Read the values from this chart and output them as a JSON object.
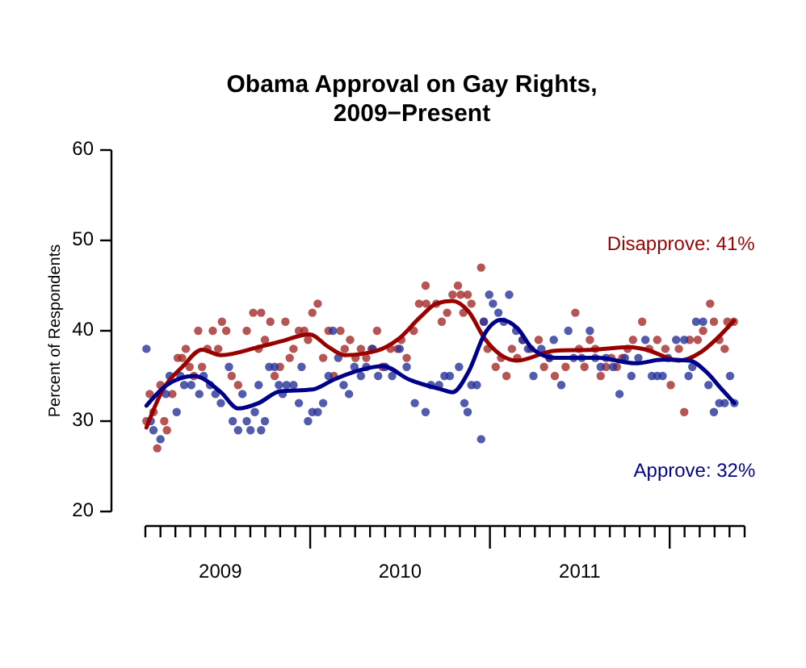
{
  "chart_data": {
    "type": "scatter",
    "title": "Obama Approval on Gay Rights,\n2009−Present",
    "ylabel": "Percent of Respondents",
    "grid": false,
    "xlim": [
      2009.083,
      2012.417
    ],
    "ylim": [
      20,
      60
    ],
    "yticks": [
      20,
      30,
      40,
      50,
      60
    ],
    "xticks": [
      {
        "value": 2009.083,
        "label": null
      },
      {
        "value": 2009.167,
        "label": null
      },
      {
        "value": 2009.25,
        "label": null
      },
      {
        "value": 2009.333,
        "label": null
      },
      {
        "value": 2009.417,
        "label": null
      },
      {
        "value": 2009.5,
        "label": "2009"
      },
      {
        "value": 2009.583,
        "label": null
      },
      {
        "value": 2009.667,
        "label": null
      },
      {
        "value": 2009.75,
        "label": null
      },
      {
        "value": 2009.833,
        "label": null
      },
      {
        "value": 2009.917,
        "label": null
      },
      {
        "value": 2010,
        "label": null
      },
      {
        "value": 2010.083,
        "label": null
      },
      {
        "value": 2010.167,
        "label": null
      },
      {
        "value": 2010.25,
        "label": null
      },
      {
        "value": 2010.333,
        "label": null
      },
      {
        "value": 2010.417,
        "label": null
      },
      {
        "value": 2010.5,
        "label": "2010"
      },
      {
        "value": 2010.583,
        "label": null
      },
      {
        "value": 2010.667,
        "label": null
      },
      {
        "value": 2010.75,
        "label": null
      },
      {
        "value": 2010.833,
        "label": null
      },
      {
        "value": 2010.917,
        "label": null
      },
      {
        "value": 2011,
        "label": null
      },
      {
        "value": 2011.083,
        "label": null
      },
      {
        "value": 2011.167,
        "label": null
      },
      {
        "value": 2011.25,
        "label": null
      },
      {
        "value": 2011.333,
        "label": null
      },
      {
        "value": 2011.417,
        "label": null
      },
      {
        "value": 2011.5,
        "label": "2011"
      },
      {
        "value": 2011.583,
        "label": null
      },
      {
        "value": 2011.667,
        "label": null
      },
      {
        "value": 2011.75,
        "label": null
      },
      {
        "value": 2011.833,
        "label": null
      },
      {
        "value": 2011.917,
        "label": null
      },
      {
        "value": 2012,
        "label": null
      },
      {
        "value": 2012.083,
        "label": null
      },
      {
        "value": 2012.167,
        "label": null
      },
      {
        "value": 2012.25,
        "label": null
      },
      {
        "value": 2012.333,
        "label": null
      },
      {
        "value": 2012.417,
        "label": null
      }
    ],
    "series": [
      {
        "marker": "circle",
        "color": "#a52a2a",
        "x": [
          2009.089,
          2009.107,
          2009.128,
          2009.149,
          2009.167,
          2009.188,
          2009.203,
          2009.233,
          2009.263,
          2009.287,
          2009.308,
          2009.329,
          2009.353,
          2009.377,
          2009.398,
          2009.428,
          2009.458,
          2009.488,
          2009.509,
          2009.533,
          2009.563,
          2009.599,
          2009.647,
          2009.683,
          2009.713,
          2009.727,
          2009.748,
          2009.778,
          2009.802,
          2009.832,
          2009.862,
          2009.886,
          2009.907,
          2009.937,
          2009.967,
          2009.988,
          2010.012,
          2010.042,
          2010.072,
          2010.102,
          2010.132,
          2010.168,
          2010.192,
          2010.222,
          2010.252,
          2010.282,
          2010.312,
          2010.342,
          2010.372,
          2010.402,
          2010.447,
          2010.486,
          2010.507,
          2010.537,
          2010.576,
          2010.606,
          2010.642,
          2010.645,
          2010.702,
          2010.732,
          2010.762,
          2010.792,
          2010.822,
          2010.837,
          2010.852,
          2010.876,
          2010.897,
          2010.951,
          2010.966,
          2010.987,
          2011.032,
          2011.062,
          2011.092,
          2011.122,
          2011.152,
          2011.182,
          2011.227,
          2011.271,
          2011.301,
          2011.331,
          2011.361,
          2011.421,
          2011.475,
          2011.496,
          2011.526,
          2011.556,
          2011.586,
          2011.616,
          2011.646,
          2011.676,
          2011.706,
          2011.736,
          2011.766,
          2011.796,
          2011.847,
          2011.886,
          2011.931,
          2011.976,
          2012.006,
          2012.051,
          2012.081,
          2012.111,
          2012.156,
          2012.186,
          2012.225,
          2012.246,
          2012.276,
          2012.306,
          2012.321,
          2012.357
        ],
        "values": [
          30,
          33,
          31,
          27,
          34,
          30,
          29,
          33,
          37,
          37,
          38,
          36,
          35,
          40,
          36,
          38,
          40,
          38,
          41,
          40,
          35,
          34,
          40,
          42,
          38,
          42,
          39,
          41,
          35,
          36,
          41,
          37,
          38,
          40,
          40,
          39,
          42,
          43,
          37,
          40,
          35,
          40,
          38,
          39,
          37,
          38,
          37,
          38,
          40,
          36,
          38,
          38,
          39,
          37,
          40,
          43,
          45,
          43,
          43,
          41,
          42,
          44,
          45,
          44,
          42,
          44,
          43,
          47,
          41,
          38,
          36,
          37,
          35,
          38,
          37,
          39,
          38,
          39,
          36,
          37,
          35,
          36,
          42,
          38,
          36,
          39,
          38,
          35,
          36,
          37,
          36,
          37,
          38,
          39,
          41,
          38,
          39,
          38,
          34,
          38,
          31,
          39,
          39,
          40,
          43,
          41,
          39,
          38,
          41,
          41
        ]
      },
      {
        "marker": "circle",
        "color": "#27339b",
        "x": [
          2009.089,
          2009.113,
          2009.128,
          2009.167,
          2009.197,
          2009.218,
          2009.257,
          2009.278,
          2009.299,
          2009.338,
          2009.383,
          2009.407,
          2009.443,
          2009.473,
          2009.503,
          2009.548,
          2009.569,
          2009.599,
          2009.623,
          2009.647,
          2009.668,
          2009.692,
          2009.713,
          2009.727,
          2009.748,
          2009.772,
          2009.802,
          2009.826,
          2009.847,
          2009.868,
          2009.907,
          2009.937,
          2009.952,
          2009.988,
          2010.012,
          2010.042,
          2010.072,
          2010.102,
          2010.126,
          2010.156,
          2010.186,
          2010.216,
          2010.246,
          2010.282,
          2010.312,
          2010.348,
          2010.378,
          2010.417,
          2010.456,
          2010.498,
          2010.537,
          2010.582,
          2010.642,
          2010.672,
          2010.717,
          2010.747,
          2010.777,
          2010.828,
          2010.858,
          2010.876,
          2010.897,
          2010.927,
          2010.951,
          2010.966,
          2010.996,
          2011.017,
          2011.047,
          2011.077,
          2011.107,
          2011.146,
          2011.182,
          2011.212,
          2011.242,
          2011.286,
          2011.331,
          2011.355,
          2011.397,
          2011.436,
          2011.466,
          2011.511,
          2011.556,
          2011.586,
          2011.616,
          2011.646,
          2011.685,
          2011.721,
          2011.751,
          2011.787,
          2011.826,
          2011.865,
          2011.901,
          2011.931,
          2011.961,
          2011.991,
          2012.036,
          2012.081,
          2012.105,
          2012.126,
          2012.147,
          2012.186,
          2012.216,
          2012.246,
          2012.276,
          2012.306,
          2012.336,
          2012.36
        ],
        "values": [
          38,
          30,
          29,
          28,
          33,
          35,
          31,
          35,
          34,
          34,
          33,
          35,
          34,
          33,
          32,
          36,
          30,
          29,
          33,
          30,
          29,
          31,
          34,
          29,
          30,
          36,
          36,
          34,
          33,
          34,
          34,
          32,
          36,
          30,
          31,
          31,
          32,
          35,
          40,
          37,
          34,
          33,
          36,
          35,
          36,
          38,
          35,
          36,
          35,
          38,
          36,
          32,
          31,
          34,
          34,
          35,
          35,
          36,
          32,
          31,
          34,
          34,
          28,
          41,
          44,
          43,
          42,
          41,
          44,
          40,
          39,
          38,
          35,
          38,
          37,
          39,
          34,
          40,
          37,
          37,
          40,
          37,
          36,
          37,
          36,
          33,
          37,
          35,
          37,
          39,
          35,
          35,
          35,
          37,
          39,
          39,
          35,
          36,
          41,
          41,
          34,
          31,
          32,
          32,
          35,
          32
        ]
      },
      {
        "type": "line",
        "marker": "none",
        "name": "Disapprove: 41%",
        "color": "#990000",
        "x": [
          2009.089,
          2009.173,
          2009.293,
          2009.398,
          2009.503,
          2009.713,
          2009.832,
          2009.997,
          2010.102,
          2010.192,
          2010.372,
          2010.492,
          2010.612,
          2010.702,
          2010.792,
          2010.882,
          2010.972,
          2011.062,
          2011.152,
          2011.361,
          2011.571,
          2011.781,
          2011.871,
          2012.051,
          2012.171,
          2012.261,
          2012.357
        ],
        "values": [
          29.3,
          33.2,
          36.1,
          37.9,
          37.3,
          38.2,
          38.8,
          39.6,
          38.2,
          37.3,
          37.8,
          39.1,
          41.5,
          43,
          43.3,
          42.1,
          39.1,
          37.3,
          36.7,
          37.8,
          37.9,
          38.2,
          37.9,
          36.7,
          37.6,
          39.1,
          41.1
        ]
      },
      {
        "type": "line",
        "marker": "none",
        "name": "Approve: 32%",
        "color": "#00008b",
        "x": [
          2009.089,
          2009.203,
          2009.353,
          2009.503,
          2009.599,
          2009.713,
          2009.832,
          2010.012,
          2010.132,
          2010.252,
          2010.402,
          2010.551,
          2010.732,
          2010.792,
          2010.882,
          2010.972,
          2011.062,
          2011.152,
          2011.242,
          2011.361,
          2011.601,
          2011.811,
          2011.961,
          2012.111,
          2012.201,
          2012.291,
          2012.36
        ],
        "values": [
          31.7,
          34,
          35,
          33.2,
          31.4,
          32,
          33.3,
          33.5,
          34.6,
          35.5,
          36.1,
          34.6,
          33.5,
          33.2,
          35.5,
          39.7,
          41.2,
          40.3,
          37.9,
          37,
          37,
          36.4,
          36.8,
          36.7,
          35.5,
          33.5,
          32
        ]
      }
    ]
  }
}
